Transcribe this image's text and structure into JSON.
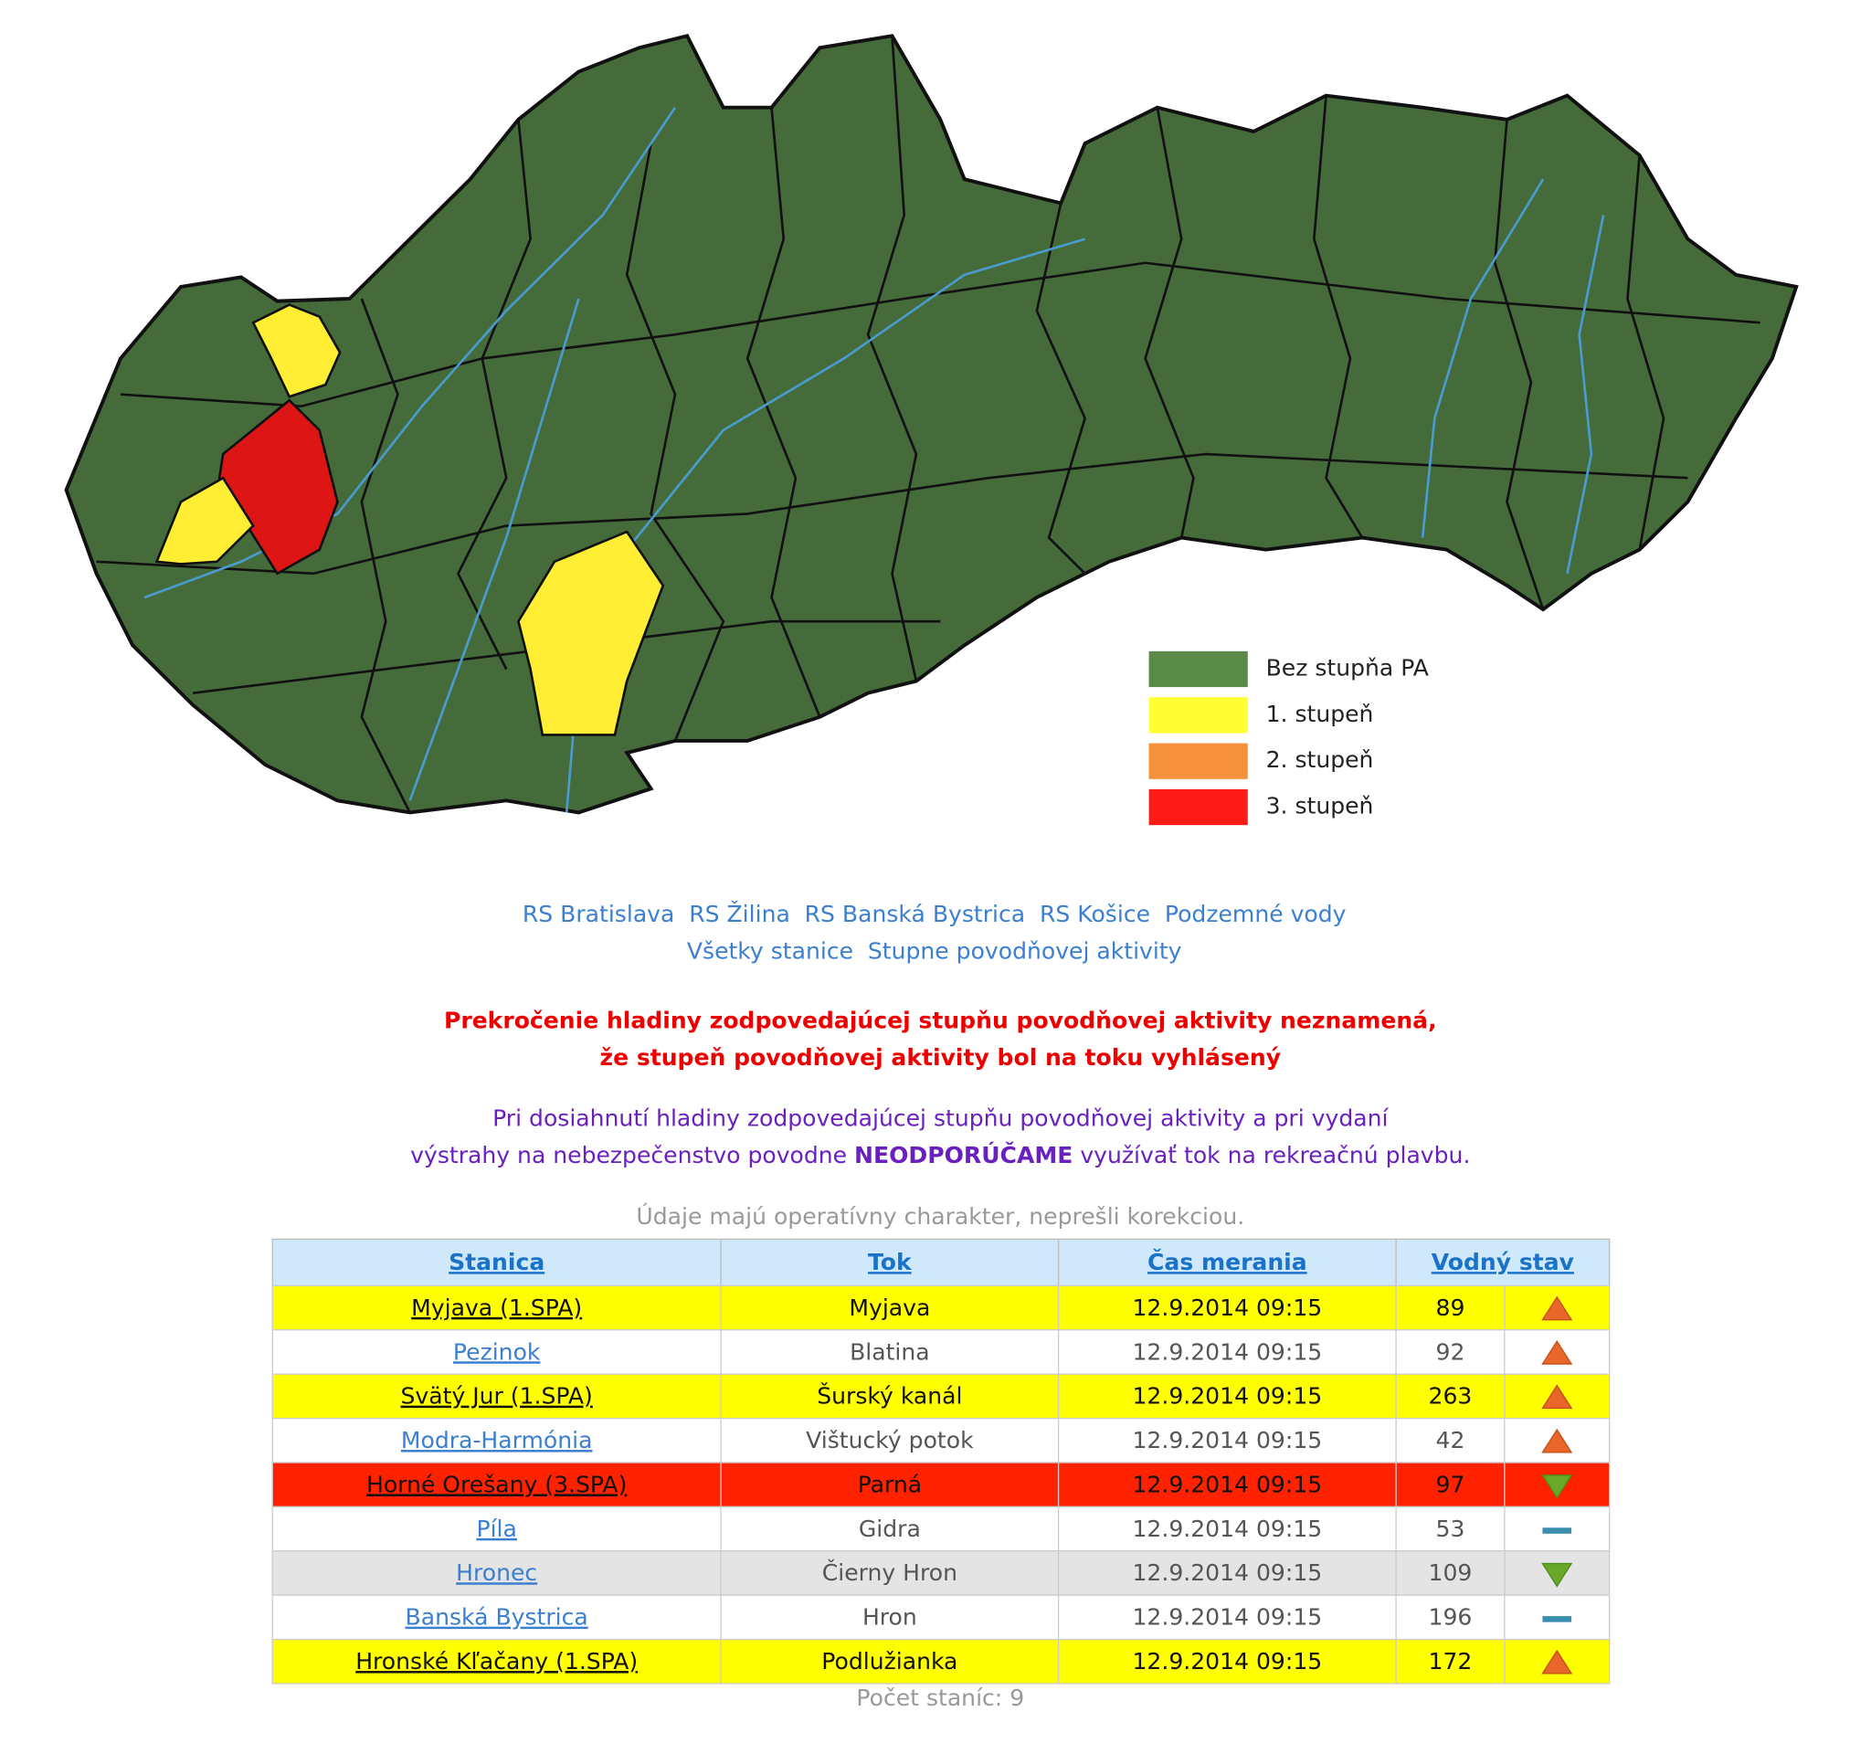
{
  "map_legend": [
    {
      "label": "Bez stupňa PA",
      "color": "#5a8a48"
    },
    {
      "label": "1. stupeň",
      "color": "#ffff33"
    },
    {
      "label": "2. stupeň",
      "color": "#f5913a"
    },
    {
      "label": "3. stupeň",
      "color": "#ff1a1a"
    }
  ],
  "nav": {
    "links": [
      [
        "RS Bratislava",
        "RS Žilina",
        "RS Banská Bystrica",
        "RS Košice",
        "Podzemné vody"
      ],
      [
        "Všetky stanice",
        "Stupne povodňovej aktivity"
      ]
    ]
  },
  "warning": [
    "Prekročenie hladiny zodpovedajúcej stupňu povodňovej aktivity neznamená,",
    "že stupeň povodňovej aktivity bol na toku vyhlásený"
  ],
  "notice": {
    "line1": "Pri dosiahnutí hladiny zodpovedajúcej stupňu povodňovej aktivity a pri vydaní",
    "line2": [
      "výstrahy na nebezpečenstvo povodne",
      "NEODPORÚČAME",
      "využívať tok na rekreačnú plavbu."
    ]
  },
  "disclaimer": "Údaje majú operatívny charakter, neprešli korekciou.",
  "table": {
    "headers": [
      "Stanica",
      "Tok",
      "Čas merania",
      "Vodný stav"
    ],
    "rows": [
      {
        "station": "Myjava (1.SPA)",
        "river": "Myjava",
        "time": "12.9.2014 09:15",
        "level": 89,
        "trend": "up",
        "row_color": "#ffff00"
      },
      {
        "station": "Pezinok",
        "river": "Blatina",
        "time": "12.9.2014 09:15",
        "level": 92,
        "trend": "up",
        "row_color": "#ffffff"
      },
      {
        "station": "Svätý Jur (1.SPA)",
        "river": "Šurský kanál",
        "time": "12.9.2014 09:15",
        "level": 263,
        "trend": "up",
        "row_color": "#ffff00"
      },
      {
        "station": "Modra-Harmónia",
        "river": "Vištucký potok",
        "time": "12.9.2014 09:15",
        "level": 42,
        "trend": "up",
        "row_color": "#ffffff"
      },
      {
        "station": "Horné Orešany (3.SPA)",
        "river": "Parná",
        "time": "12.9.2014 09:15",
        "level": 97,
        "trend": "down",
        "row_color": "#ff2200"
      },
      {
        "station": "Píla",
        "river": "Gidra",
        "time": "12.9.2014 09:15",
        "level": 53,
        "trend": "steady",
        "row_color": "#ffffff"
      },
      {
        "station": "Hronec",
        "river": "Čierny Hron",
        "time": "12.9.2014 09:15",
        "level": 109,
        "trend": "down",
        "row_color": "#e4e4e4"
      },
      {
        "station": "Banská Bystrica",
        "river": "Hron",
        "time": "12.9.2014 09:15",
        "level": 196,
        "trend": "steady",
        "row_color": "#ffffff"
      },
      {
        "station": "Hronské Kľačany (1.SPA)",
        "river": "Podlužianka",
        "time": "12.9.2014 09:15",
        "level": 172,
        "trend": "up",
        "row_color": "#ffff00"
      }
    ]
  },
  "footer": "Počet staníc: 9"
}
